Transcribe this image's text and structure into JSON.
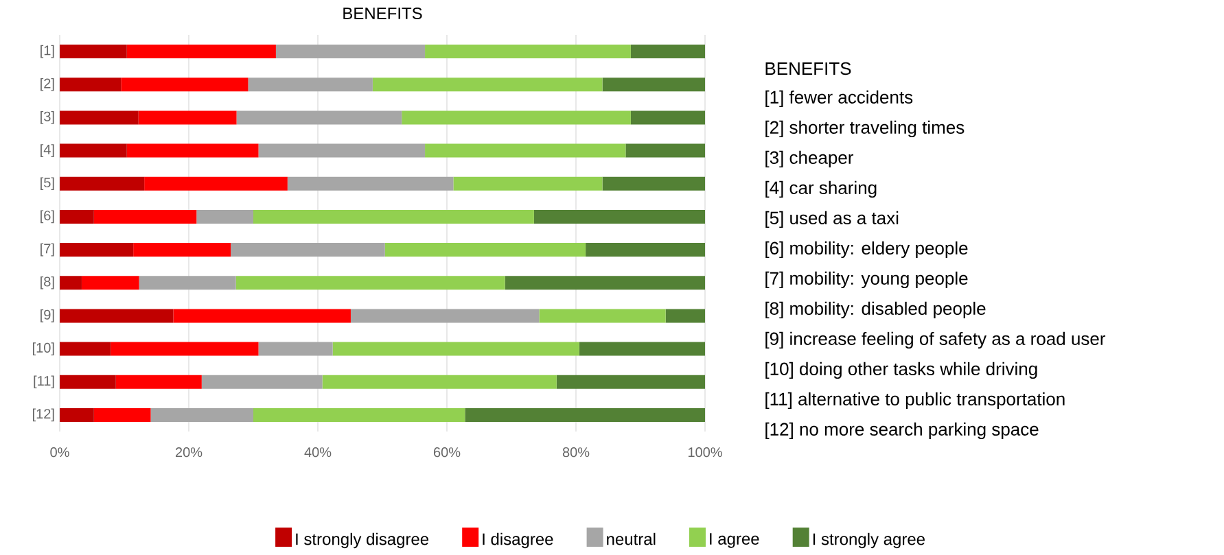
{
  "chart_data": {
    "type": "bar",
    "orientation": "horizontal",
    "stacked": true,
    "title": "BENEFITS",
    "categories": [
      "[1]",
      "[2]",
      "[3]",
      "[4]",
      "[5]",
      "[6]",
      "[7]",
      "[8]",
      "[9]",
      "[10]",
      "[11]",
      "[12]"
    ],
    "series": [
      {
        "name": "I strongly disagree",
        "color": "#c00000",
        "values": [
          10.4,
          9.5,
          12.2,
          10.4,
          13.1,
          5.3,
          11.4,
          3.4,
          17.6,
          7.9,
          8.7,
          5.3
        ]
      },
      {
        "name": "I disagree",
        "color": "#ff0000",
        "values": [
          23.1,
          19.7,
          15.2,
          20.4,
          22.2,
          15.9,
          15.1,
          8.9,
          27.5,
          22.9,
          13.3,
          8.8
        ]
      },
      {
        "name": "neutral",
        "color": "#a6a6a6",
        "values": [
          23.1,
          19.3,
          25.6,
          25.8,
          25.7,
          8.8,
          23.9,
          15.0,
          29.2,
          11.5,
          18.7,
          15.9
        ]
      },
      {
        "name": "I agree",
        "color": "#92d050",
        "values": [
          31.9,
          35.6,
          35.5,
          31.1,
          23.1,
          43.5,
          31.1,
          41.7,
          19.6,
          38.2,
          36.3,
          32.8
        ]
      },
      {
        "name": "I strongly agree",
        "color": "#538135",
        "values": [
          11.5,
          15.9,
          11.5,
          12.3,
          15.9,
          26.5,
          18.5,
          31.0,
          6.1,
          19.5,
          23.0,
          37.2
        ]
      }
    ],
    "xlim": [
      0,
      100
    ],
    "xticks": [
      {
        "value": 0,
        "label": "0%"
      },
      {
        "value": 20,
        "label": "20%"
      },
      {
        "value": 40,
        "label": "40%"
      },
      {
        "value": 60,
        "label": "60%"
      },
      {
        "value": 80,
        "label": "80%"
      },
      {
        "value": 100,
        "label": "100%"
      }
    ],
    "grid": "x",
    "legend": "bottom",
    "annotations": [
      "BENEFITS",
      "[1] fewer accidents",
      "[2] shorter traveling times",
      "[3] cheaper",
      "[4] car sharing",
      "[5] used as a taxi",
      "[6] mobility: eldery people",
      "[7] mobility: young people",
      "[8] mobility: disabled people",
      "[9] increase feeling of safety as a road user",
      "[10] doing other tasks while driving",
      "[11] alternative to public transportation",
      "[12] no more search parking space"
    ]
  }
}
